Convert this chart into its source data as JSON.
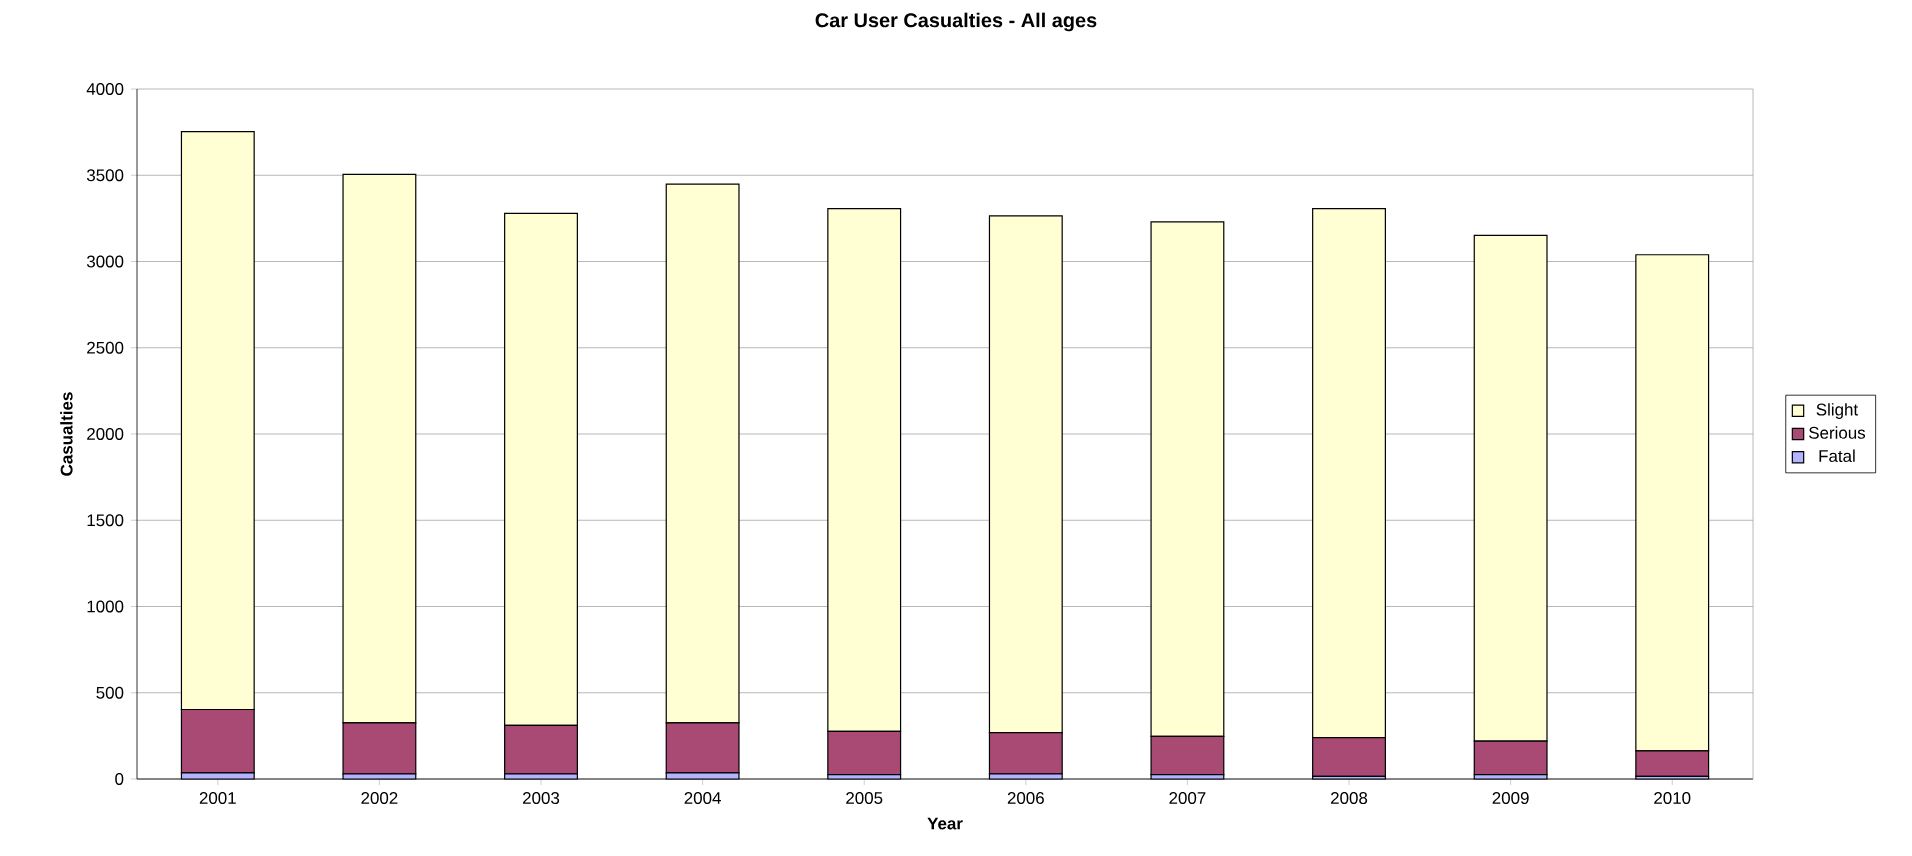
{
  "chart_data": {
    "type": "bar",
    "stacked": true,
    "title": "Car User Casualties - All ages",
    "xlabel": "Year",
    "ylabel": "Casualties",
    "categories": [
      "2001",
      "2002",
      "2003",
      "2004",
      "2005",
      "2006",
      "2007",
      "2008",
      "2009",
      "2010"
    ],
    "series": [
      {
        "name": "Fatal",
        "color": "#b3b3ff",
        "values": [
          35,
          30,
          30,
          35,
          25,
          30,
          25,
          15,
          25,
          15
        ]
      },
      {
        "name": "Serious",
        "color": "#a94a75",
        "values": [
          368,
          295,
          281,
          290,
          251,
          239,
          222,
          225,
          194,
          148
        ]
      },
      {
        "name": "Slight",
        "color": "#ffffd3",
        "values": [
          3350,
          3180,
          2968,
          3124,
          3031,
          2996,
          2983,
          3067,
          2933,
          2876
        ]
      }
    ],
    "ylim": [
      0,
      4000
    ],
    "yticks": [
      0,
      500,
      1000,
      1500,
      2000,
      2500,
      3000,
      3500,
      4000
    ],
    "grid": "y",
    "legend": "right"
  }
}
